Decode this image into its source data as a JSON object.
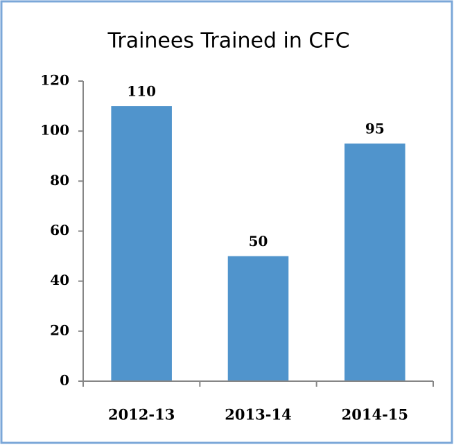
{
  "chart_data": {
    "type": "bar",
    "title": "Trainees Trained in CFC",
    "categories": [
      "2012-13",
      "2013-14",
      "2014-15"
    ],
    "values": [
      110,
      50,
      95
    ],
    "color": "#5094cc",
    "ylim": [
      0,
      120
    ],
    "yticks": [
      0,
      20,
      40,
      60,
      80,
      100,
      120
    ],
    "grid": false
  }
}
